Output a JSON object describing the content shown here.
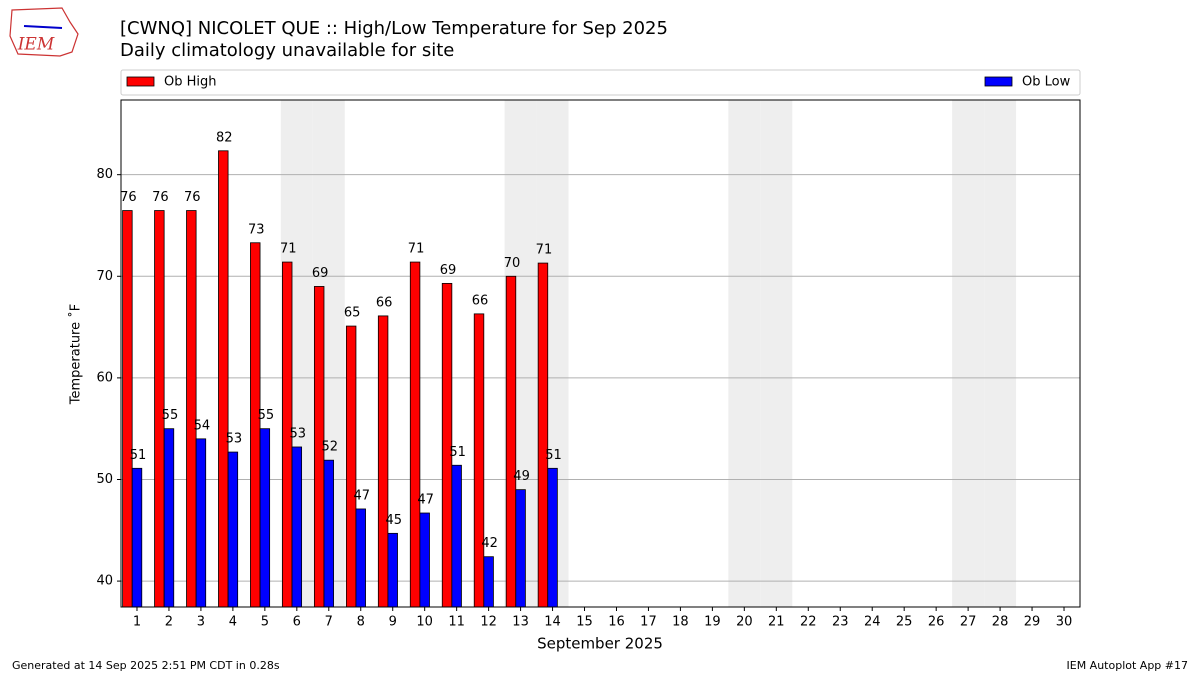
{
  "logo_text": "IEM",
  "footer_left": "Generated at 14 Sep 2025 2:51 PM CDT in 0.28s",
  "footer_right": "IEM Autoplot App #17",
  "chart_data": {
    "type": "bar",
    "title": "[CWNQ] NICOLET  QUE :: High/Low Temperature for Sep 2025",
    "subtitle": "Daily climatology unavailable for site",
    "ylabel": "Temperature ˚F",
    "xlabel": "September 2025",
    "categories": [
      "1",
      "2",
      "3",
      "4",
      "5",
      "6",
      "7",
      "8",
      "9",
      "10",
      "11",
      "12",
      "13",
      "14",
      "15",
      "16",
      "17",
      "18",
      "19",
      "20",
      "21",
      "22",
      "23",
      "24",
      "25",
      "26",
      "27",
      "28",
      "29",
      "30"
    ],
    "shaded_categories": [
      "6",
      "7",
      "13",
      "14",
      "20",
      "21",
      "27",
      "28"
    ],
    "series": [
      {
        "name": "Ob High",
        "color": "#ff0000",
        "values": [
          76.47,
          76.47,
          76.47,
          82.35,
          73.3,
          71.4,
          69.0,
          65.1,
          66.1,
          71.4,
          69.3,
          66.3,
          70.0,
          71.3,
          null,
          null,
          null,
          null,
          null,
          null,
          null,
          null,
          null,
          null,
          null,
          null,
          null,
          null,
          null,
          null
        ],
        "value_labels": [
          "76",
          "76",
          "76",
          "82",
          "73",
          "71",
          "69",
          "65",
          "66",
          "71",
          "69",
          "66",
          "70",
          "71",
          null,
          null,
          null,
          null,
          null,
          null,
          null,
          null,
          null,
          null,
          null,
          null,
          null,
          null,
          null,
          null
        ]
      },
      {
        "name": "Ob Low",
        "color": "#0000ff",
        "values": [
          51.1,
          55.0,
          54.0,
          52.7,
          55.0,
          53.2,
          51.9,
          47.1,
          44.7,
          46.7,
          51.4,
          42.4,
          49.0,
          51.1,
          null,
          null,
          null,
          null,
          null,
          null,
          null,
          null,
          null,
          null,
          null,
          null,
          null,
          null,
          null,
          null
        ],
        "value_labels": [
          "51",
          "55",
          "54",
          "53",
          "55",
          "53",
          "52",
          "47",
          "45",
          "47",
          "51",
          "42",
          "49",
          "51",
          null,
          null,
          null,
          null,
          null,
          null,
          null,
          null,
          null,
          null,
          null,
          null,
          null,
          null,
          null,
          null
        ]
      }
    ],
    "ylim": [
      37.45,
      87.35
    ],
    "yticks": [
      40,
      50,
      60,
      70,
      80
    ],
    "grid": true,
    "legend": "top"
  }
}
